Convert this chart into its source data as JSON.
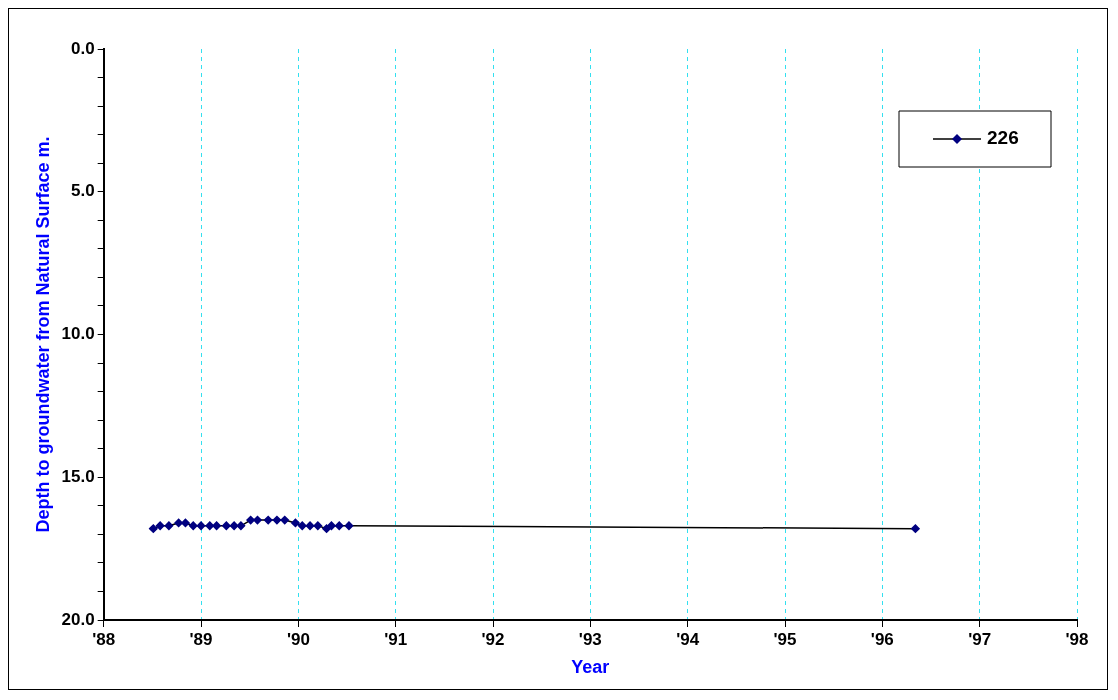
{
  "chart_data": {
    "type": "line",
    "xlabel": "Year",
    "ylabel": "Depth to groundwater from Natural Surface m.",
    "xlim": [
      1988,
      1998
    ],
    "xticks": [
      {
        "value": 1988,
        "label": "'88"
      },
      {
        "value": 1989,
        "label": "'89"
      },
      {
        "value": 1990,
        "label": "'90"
      },
      {
        "value": 1991,
        "label": "'91"
      },
      {
        "value": 1992,
        "label": "'92"
      },
      {
        "value": 1993,
        "label": "'93"
      },
      {
        "value": 1994,
        "label": "'94"
      },
      {
        "value": 1995,
        "label": "'95"
      },
      {
        "value": 1996,
        "label": "'96"
      },
      {
        "value": 1997,
        "label": "'97"
      },
      {
        "value": 1998,
        "label": "'98"
      }
    ],
    "ylim": [
      20,
      0
    ],
    "yticks": [
      {
        "value": 0,
        "label": "0.0"
      },
      {
        "value": 1,
        "label": null
      },
      {
        "value": 2,
        "label": null
      },
      {
        "value": 3,
        "label": null
      },
      {
        "value": 4,
        "label": null
      },
      {
        "value": 5,
        "label": "5.0"
      },
      {
        "value": 6,
        "label": null
      },
      {
        "value": 7,
        "label": null
      },
      {
        "value": 8,
        "label": null
      },
      {
        "value": 9,
        "label": null
      },
      {
        "value": 10,
        "label": "10.0"
      },
      {
        "value": 11,
        "label": null
      },
      {
        "value": 12,
        "label": null
      },
      {
        "value": 13,
        "label": null
      },
      {
        "value": 14,
        "label": null
      },
      {
        "value": 15,
        "label": "15.0"
      },
      {
        "value": 16,
        "label": null
      },
      {
        "value": 17,
        "label": null
      },
      {
        "value": 18,
        "label": null
      },
      {
        "value": 19,
        "label": null
      },
      {
        "value": 20,
        "label": "20.0"
      }
    ],
    "grid": "x",
    "legend": "top right",
    "marker": "diamond",
    "line_style": "solid",
    "series": [
      {
        "name": "226",
        "color": "#000080",
        "x": [
          1988.51,
          1988.58,
          1988.67,
          1988.77,
          1988.84,
          1988.92,
          1989.0,
          1989.09,
          1989.16,
          1989.26,
          1989.34,
          1989.41,
          1989.51,
          1989.58,
          1989.69,
          1989.78,
          1989.86,
          1989.97,
          1990.04,
          1990.12,
          1990.2,
          1990.29,
          1990.34,
          1990.42,
          1990.52,
          1996.34
        ],
        "values": [
          16.8,
          16.7,
          16.7,
          16.6,
          16.6,
          16.7,
          16.7,
          16.7,
          16.7,
          16.7,
          16.7,
          16.7,
          16.5,
          16.5,
          16.5,
          16.5,
          16.5,
          16.6,
          16.7,
          16.7,
          16.7,
          16.8,
          16.7,
          16.7,
          16.7,
          16.8
        ]
      }
    ]
  }
}
